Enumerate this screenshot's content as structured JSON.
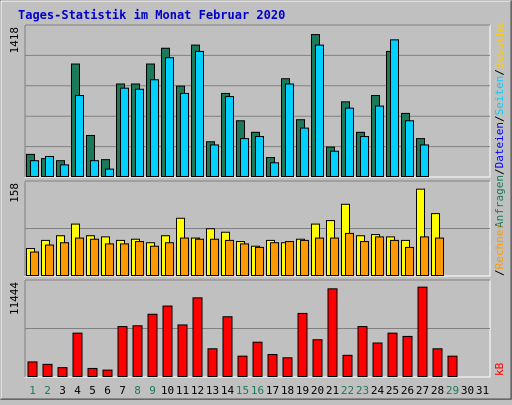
{
  "chart_data": {
    "title": "Tages-Statistik im Monat Februar 2020",
    "days": [
      "1",
      "2",
      "3",
      "4",
      "5",
      "6",
      "7",
      "8",
      "9",
      "10",
      "11",
      "12",
      "13",
      "14",
      "15",
      "16",
      "17",
      "18",
      "19",
      "20",
      "21",
      "22",
      "23",
      "24",
      "25",
      "26",
      "27",
      "28",
      "29",
      "30",
      "31"
    ],
    "weekend_days": [
      "1",
      "2",
      "8",
      "9",
      "15",
      "16",
      "22",
      "23",
      "29"
    ],
    "panel1": {
      "type": "bar",
      "ymax_label": "1418",
      "ymax": 1418,
      "series": [
        {
          "name": "Anfragen",
          "color": "#1c7a5a",
          "values": [
            220,
            180,
            160,
            1080,
            400,
            170,
            890,
            890,
            1080,
            1230,
            870,
            1260,
            340,
            800,
            540,
            430,
            190,
            940,
            550,
            1360,
            290,
            720,
            430,
            780,
            1200,
            610,
            370,
            0,
            0,
            0,
            0
          ]
        },
        {
          "name": "Dateien",
          "color": "#00d0ff",
          "values": [
            160,
            200,
            120,
            780,
            160,
            80,
            850,
            840,
            930,
            1140,
            800,
            1200,
            310,
            770,
            370,
            390,
            140,
            890,
            470,
            1260,
            250,
            660,
            390,
            680,
            1310,
            540,
            310,
            0,
            0,
            0,
            0
          ]
        },
        {
          "name": "Seiten",
          "color": "#00d0ff",
          "values": []
        }
      ]
    },
    "panel2": {
      "type": "bar",
      "ymax_label": "158",
      "ymax": 158,
      "series": [
        {
          "name": "Besuche",
          "color": "#ffff00",
          "values": [
            48,
            62,
            70,
            90,
            70,
            68,
            62,
            64,
            58,
            70,
            100,
            66,
            82,
            76,
            60,
            52,
            62,
            58,
            64,
            90,
            96,
            124,
            70,
            72,
            68,
            62,
            150,
            108,
            0,
            0,
            0
          ]
        },
        {
          "name": "Rechner",
          "color": "#ff9900",
          "values": [
            42,
            54,
            58,
            66,
            64,
            56,
            56,
            60,
            52,
            58,
            66,
            64,
            64,
            62,
            56,
            50,
            58,
            60,
            62,
            66,
            66,
            74,
            60,
            68,
            62,
            50,
            68,
            66,
            0,
            0,
            0
          ]
        }
      ]
    },
    "panel3": {
      "type": "bar",
      "ymax_label": "11444",
      "ymax": 11444,
      "series": [
        {
          "name": "kB",
          "color": "#ff0000",
          "values": [
            1900,
            1600,
            1200,
            5400,
            1100,
            900,
            6200,
            6300,
            7700,
            8700,
            6400,
            9700,
            3500,
            7400,
            2600,
            4300,
            2800,
            2400,
            7800,
            4600,
            10800,
            2700,
            6200,
            4200,
            5400,
            5000,
            11000,
            3500,
            2600,
            0,
            0
          ]
        }
      ]
    },
    "right_legend": {
      "top": {
        "parts": [
          "Anfragen",
          "/",
          "Dateien",
          "/",
          "Seiten",
          "/",
          "Besuche"
        ],
        "colors": [
          "#1c7a5a",
          "#000000",
          "#0000ff",
          "#000000",
          "#00d0ff",
          "#000000",
          "#ffcc00"
        ]
      },
      "middle": {
        "parts": [
          "Rechner"
        ],
        "colors": [
          "#ff9900"
        ]
      },
      "bottom": {
        "parts": [
          "kB"
        ],
        "colors": [
          "#ff0000"
        ]
      }
    },
    "colors": {
      "background": "#c0c0c0",
      "title": "#0000cc",
      "weekday_label": "#000000",
      "weekend_label": "#1c7a5a",
      "gridline": "#808080"
    }
  }
}
